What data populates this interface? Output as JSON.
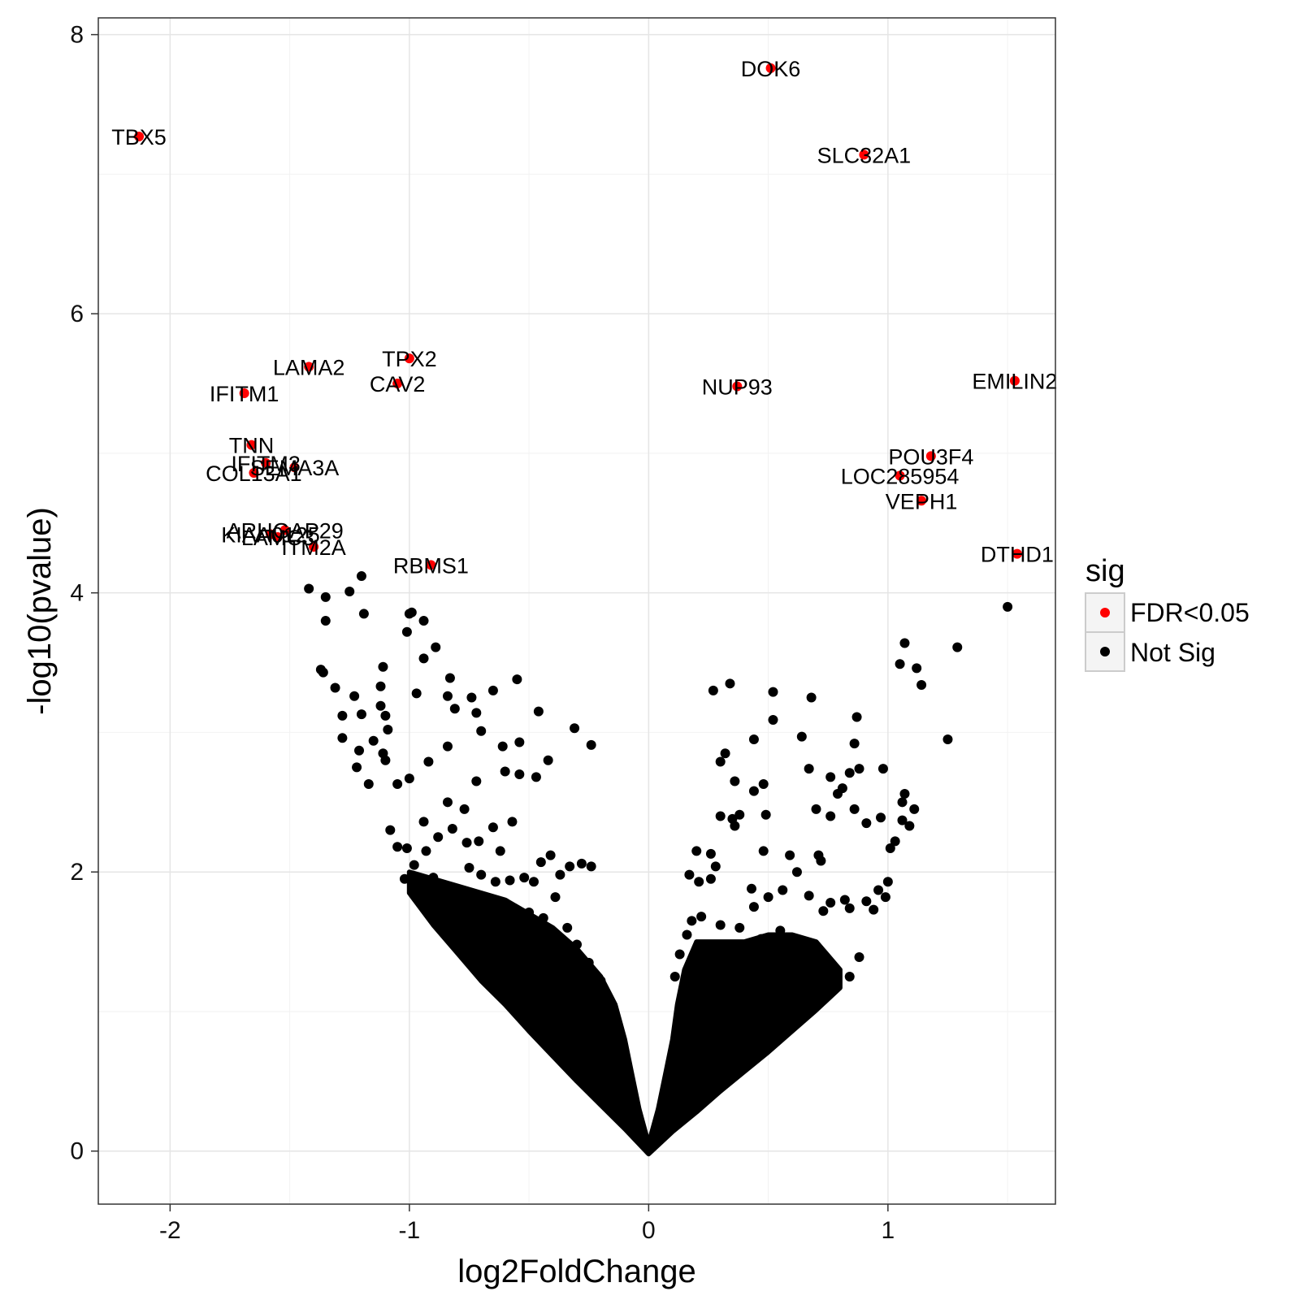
{
  "chart_data": {
    "type": "scatter",
    "title": "",
    "xlabel": "log2FoldChange",
    "ylabel": "-log10(pvalue)",
    "xlim": [
      -2.3,
      1.7
    ],
    "ylim": [
      -0.38,
      8.12
    ],
    "x_ticks": [
      -2,
      -1,
      0,
      1
    ],
    "x_tick_labels": [
      "-2",
      "-1",
      "0",
      "1"
    ],
    "y_ticks": [
      0,
      2,
      4,
      6,
      8
    ],
    "y_tick_labels": [
      "0",
      "2",
      "4",
      "6",
      "8"
    ],
    "grid": true,
    "legend": {
      "title": "sig",
      "position": "right",
      "entries": [
        {
          "label": "FDR<0.05",
          "color": "#ff0000"
        },
        {
          "label": "Not Sig",
          "color": "#000000"
        }
      ]
    },
    "series": [
      {
        "name": "FDR<0.05",
        "color": "#ff0000",
        "points": [
          {
            "x": -2.13,
            "y": 7.27,
            "label": "TBX5"
          },
          {
            "x": 0.51,
            "y": 7.76,
            "label": "DOK6"
          },
          {
            "x": 0.9,
            "y": 7.14,
            "label": "SLC32A1"
          },
          {
            "x": -1.42,
            "y": 5.62,
            "label": "LAMA2"
          },
          {
            "x": -1.0,
            "y": 5.68,
            "label": "TPX2"
          },
          {
            "x": -1.05,
            "y": 5.5,
            "label": "CAV2"
          },
          {
            "x": -1.69,
            "y": 5.43,
            "label": "IFITM1"
          },
          {
            "x": 0.37,
            "y": 5.48,
            "label": "NUP93"
          },
          {
            "x": 1.53,
            "y": 5.52,
            "label": "EMILIN2"
          },
          {
            "x": -1.66,
            "y": 5.06,
            "label": "TNN"
          },
          {
            "x": -1.6,
            "y": 4.93,
            "label": "IFITM3"
          },
          {
            "x": -1.48,
            "y": 4.9,
            "label": "SEMA3A"
          },
          {
            "x": -1.65,
            "y": 4.86,
            "label": "COL13A1"
          },
          {
            "x": 1.18,
            "y": 4.98,
            "label": "POU3F4"
          },
          {
            "x": 1.05,
            "y": 4.84,
            "label": "LOC285954"
          },
          {
            "x": 1.14,
            "y": 4.66,
            "label": "VEPH1"
          },
          {
            "x": -1.52,
            "y": 4.45,
            "label": "ARHGAP29"
          },
          {
            "x": -1.58,
            "y": 4.42,
            "label": "KIAA0125"
          },
          {
            "x": -1.55,
            "y": 4.4,
            "label": "LAMC3"
          },
          {
            "x": -1.4,
            "y": 4.33,
            "label": "ITM2A"
          },
          {
            "x": -0.91,
            "y": 4.2,
            "label": "RBMS1"
          },
          {
            "x": 1.54,
            "y": 4.28,
            "label": "DTHD1"
          }
        ]
      },
      {
        "name": "Not Sig",
        "color": "#000000",
        "points": [
          {
            "x": -1.42,
            "y": 4.03
          },
          {
            "x": -1.35,
            "y": 3.97
          },
          {
            "x": -1.25,
            "y": 4.01
          },
          {
            "x": -1.2,
            "y": 4.12
          },
          {
            "x": -1.19,
            "y": 3.85
          },
          {
            "x": -1.35,
            "y": 3.8
          },
          {
            "x": -0.99,
            "y": 3.86
          },
          {
            "x": -1.0,
            "y": 3.85
          },
          {
            "x": -1.01,
            "y": 3.72
          },
          {
            "x": -0.94,
            "y": 3.8
          },
          {
            "x": -0.89,
            "y": 3.61
          },
          {
            "x": -0.94,
            "y": 3.53
          },
          {
            "x": -1.37,
            "y": 3.45
          },
          {
            "x": -1.36,
            "y": 3.43
          },
          {
            "x": -1.31,
            "y": 3.32
          },
          {
            "x": -1.11,
            "y": 3.47
          },
          {
            "x": -1.23,
            "y": 3.26
          },
          {
            "x": -1.12,
            "y": 3.33
          },
          {
            "x": -1.12,
            "y": 3.19
          },
          {
            "x": -1.2,
            "y": 3.13
          },
          {
            "x": -1.1,
            "y": 3.12
          },
          {
            "x": -1.28,
            "y": 3.12
          },
          {
            "x": -1.09,
            "y": 3.02
          },
          {
            "x": -0.97,
            "y": 3.28
          },
          {
            "x": -0.83,
            "y": 3.39
          },
          {
            "x": -0.84,
            "y": 3.26
          },
          {
            "x": -0.74,
            "y": 3.25
          },
          {
            "x": -0.65,
            "y": 3.3
          },
          {
            "x": -0.55,
            "y": 3.38
          },
          {
            "x": -0.46,
            "y": 3.15
          },
          {
            "x": -0.31,
            "y": 3.03
          },
          {
            "x": -0.24,
            "y": 2.91
          },
          {
            "x": -0.72,
            "y": 3.14
          },
          {
            "x": -0.81,
            "y": 3.17
          },
          {
            "x": -0.7,
            "y": 3.01
          },
          {
            "x": -0.84,
            "y": 2.9
          },
          {
            "x": -0.92,
            "y": 2.79
          },
          {
            "x": -0.61,
            "y": 2.9
          },
          {
            "x": -0.54,
            "y": 2.93
          },
          {
            "x": -0.42,
            "y": 2.8
          },
          {
            "x": -0.6,
            "y": 2.72
          },
          {
            "x": -0.54,
            "y": 2.7
          },
          {
            "x": -0.47,
            "y": 2.68
          },
          {
            "x": -0.72,
            "y": 2.65
          },
          {
            "x": -1.28,
            "y": 2.96
          },
          {
            "x": -1.21,
            "y": 2.87
          },
          {
            "x": -1.22,
            "y": 2.75
          },
          {
            "x": -1.15,
            "y": 2.94
          },
          {
            "x": -1.11,
            "y": 2.85
          },
          {
            "x": -1.1,
            "y": 2.8
          },
          {
            "x": -1.05,
            "y": 2.63
          },
          {
            "x": -1.17,
            "y": 2.63
          },
          {
            "x": -1.0,
            "y": 2.67
          },
          {
            "x": 0.27,
            "y": 3.3
          },
          {
            "x": 0.34,
            "y": 3.35
          },
          {
            "x": 0.52,
            "y": 3.29
          },
          {
            "x": 0.68,
            "y": 3.25
          },
          {
            "x": 0.87,
            "y": 3.11
          },
          {
            "x": 0.52,
            "y": 3.09
          },
          {
            "x": 0.64,
            "y": 2.97
          },
          {
            "x": 0.44,
            "y": 2.95
          },
          {
            "x": 0.86,
            "y": 2.92
          },
          {
            "x": 0.32,
            "y": 2.85
          },
          {
            "x": 0.3,
            "y": 2.79
          },
          {
            "x": 0.67,
            "y": 2.74
          },
          {
            "x": 0.88,
            "y": 2.74
          },
          {
            "x": 0.84,
            "y": 2.71
          },
          {
            "x": 0.98,
            "y": 2.74
          },
          {
            "x": 0.36,
            "y": 2.65
          },
          {
            "x": 0.48,
            "y": 2.63
          },
          {
            "x": 0.44,
            "y": 2.58
          },
          {
            "x": 0.76,
            "y": 2.68
          },
          {
            "x": 0.81,
            "y": 2.6
          },
          {
            "x": 0.79,
            "y": 2.56
          },
          {
            "x": 1.05,
            "y": 3.49
          },
          {
            "x": 1.07,
            "y": 3.64
          },
          {
            "x": 1.12,
            "y": 3.46
          },
          {
            "x": 1.14,
            "y": 3.34
          },
          {
            "x": 1.29,
            "y": 3.61
          },
          {
            "x": 1.5,
            "y": 3.9
          },
          {
            "x": 1.25,
            "y": 2.95
          },
          {
            "x": 1.07,
            "y": 2.56
          },
          {
            "x": 1.06,
            "y": 2.5
          },
          {
            "x": 1.11,
            "y": 2.45
          },
          {
            "x": 1.06,
            "y": 2.37
          },
          {
            "x": 1.09,
            "y": 2.33
          },
          {
            "x": 1.03,
            "y": 2.22
          },
          {
            "x": 1.01,
            "y": 2.17
          },
          {
            "x": 0.7,
            "y": 2.45
          },
          {
            "x": 0.76,
            "y": 2.4
          },
          {
            "x": 0.86,
            "y": 2.45
          },
          {
            "x": 0.91,
            "y": 2.35
          },
          {
            "x": 0.97,
            "y": 2.39
          },
          {
            "x": 0.3,
            "y": 2.4
          },
          {
            "x": 0.35,
            "y": 2.38
          },
          {
            "x": 0.38,
            "y": 2.41
          },
          {
            "x": 0.49,
            "y": 2.41
          },
          {
            "x": 0.36,
            "y": 2.33
          },
          {
            "x": 0.2,
            "y": 2.15
          },
          {
            "x": 0.26,
            "y": 2.13
          },
          {
            "x": 0.48,
            "y": 2.15
          },
          {
            "x": 0.59,
            "y": 2.12
          },
          {
            "x": 0.71,
            "y": 2.12
          },
          {
            "x": 0.62,
            "y": 2.0
          },
          {
            "x": 0.72,
            "y": 2.08
          },
          {
            "x": 0.21,
            "y": 1.93
          },
          {
            "x": 0.17,
            "y": 1.98
          },
          {
            "x": 0.26,
            "y": 1.95
          },
          {
            "x": 0.28,
            "y": 2.04
          },
          {
            "x": 0.43,
            "y": 1.88
          },
          {
            "x": 0.44,
            "y": 1.75
          },
          {
            "x": 0.5,
            "y": 1.82
          },
          {
            "x": 0.56,
            "y": 1.87
          },
          {
            "x": 0.67,
            "y": 1.83
          },
          {
            "x": 0.76,
            "y": 1.78
          },
          {
            "x": 0.73,
            "y": 1.72
          },
          {
            "x": 0.82,
            "y": 1.8
          },
          {
            "x": 0.84,
            "y": 1.74
          },
          {
            "x": 0.91,
            "y": 1.79
          },
          {
            "x": 0.96,
            "y": 1.87
          },
          {
            "x": 0.94,
            "y": 1.73
          },
          {
            "x": 0.99,
            "y": 1.82
          },
          {
            "x": 1.0,
            "y": 1.93
          },
          {
            "x": -0.24,
            "y": 2.04
          },
          {
            "x": -0.28,
            "y": 2.06
          },
          {
            "x": -0.33,
            "y": 2.04
          },
          {
            "x": -0.37,
            "y": 1.98
          },
          {
            "x": -0.45,
            "y": 2.07
          },
          {
            "x": -0.41,
            "y": 2.12
          },
          {
            "x": -0.39,
            "y": 1.82
          },
          {
            "x": -0.48,
            "y": 1.93
          },
          {
            "x": -0.52,
            "y": 1.96
          },
          {
            "x": -0.58,
            "y": 1.94
          },
          {
            "x": -0.64,
            "y": 1.93
          },
          {
            "x": -0.7,
            "y": 1.98
          },
          {
            "x": -0.75,
            "y": 2.03
          },
          {
            "x": -0.76,
            "y": 2.21
          },
          {
            "x": -0.71,
            "y": 2.22
          },
          {
            "x": -0.62,
            "y": 2.15
          },
          {
            "x": -0.57,
            "y": 2.36
          },
          {
            "x": -0.65,
            "y": 2.32
          },
          {
            "x": -0.77,
            "y": 2.45
          },
          {
            "x": -0.84,
            "y": 2.5
          },
          {
            "x": -0.82,
            "y": 2.31
          },
          {
            "x": -0.88,
            "y": 2.25
          },
          {
            "x": -0.94,
            "y": 2.36
          },
          {
            "x": -0.93,
            "y": 2.15
          },
          {
            "x": -1.01,
            "y": 2.17
          },
          {
            "x": -0.98,
            "y": 2.05
          },
          {
            "x": -1.08,
            "y": 2.3
          },
          {
            "x": -1.05,
            "y": 2.18
          },
          {
            "x": -1.02,
            "y": 1.95
          },
          {
            "x": -0.9,
            "y": 1.96
          },
          {
            "x": -0.8,
            "y": 1.83
          },
          {
            "x": -0.72,
            "y": 1.75
          },
          {
            "x": -0.6,
            "y": 1.78
          },
          {
            "x": -0.5,
            "y": 1.71
          },
          {
            "x": -0.44,
            "y": 1.67
          },
          {
            "x": -0.34,
            "y": 1.6
          },
          {
            "x": -0.3,
            "y": 1.48
          },
          {
            "x": -0.25,
            "y": 1.35
          },
          {
            "x": -0.2,
            "y": 1.22
          },
          {
            "x": -0.16,
            "y": 1.06
          },
          {
            "x": -0.12,
            "y": 0.85
          },
          {
            "x": -0.1,
            "y": 0.68
          },
          {
            "x": -0.08,
            "y": 0.52
          },
          {
            "x": 0.11,
            "y": 1.25
          },
          {
            "x": 0.13,
            "y": 1.41
          },
          {
            "x": 0.16,
            "y": 1.55
          },
          {
            "x": 0.18,
            "y": 1.65
          },
          {
            "x": 0.22,
            "y": 1.68
          },
          {
            "x": 0.3,
            "y": 1.62
          },
          {
            "x": 0.38,
            "y": 1.6
          },
          {
            "x": 0.47,
            "y": 1.52
          },
          {
            "x": 0.55,
            "y": 1.58
          },
          {
            "x": 0.62,
            "y": 1.47
          },
          {
            "x": 0.7,
            "y": 1.37
          },
          {
            "x": 0.78,
            "y": 1.3
          },
          {
            "x": 0.84,
            "y": 1.25
          },
          {
            "x": 0.88,
            "y": 1.39
          }
        ]
      }
    ],
    "envelope": {
      "description": "dense not-significant points forming a V-shaped region",
      "color": "#000000",
      "outer": [
        [
          -1.0,
          1.85
        ],
        [
          -0.9,
          1.62
        ],
        [
          -0.8,
          1.42
        ],
        [
          -0.7,
          1.22
        ],
        [
          -0.6,
          1.05
        ],
        [
          -0.5,
          0.86
        ],
        [
          -0.4,
          0.68
        ],
        [
          -0.3,
          0.5
        ],
        [
          -0.2,
          0.33
        ],
        [
          -0.1,
          0.16
        ],
        [
          0.0,
          -0.02
        ],
        [
          0.1,
          0.14
        ],
        [
          0.2,
          0.28
        ],
        [
          0.3,
          0.43
        ],
        [
          0.4,
          0.57
        ],
        [
          0.5,
          0.71
        ],
        [
          0.6,
          0.86
        ],
        [
          0.7,
          1.01
        ],
        [
          0.8,
          1.17
        ]
      ],
      "inner": [
        [
          0.8,
          1.3
        ],
        [
          0.7,
          1.5
        ],
        [
          0.6,
          1.55
        ],
        [
          0.5,
          1.55
        ],
        [
          0.4,
          1.5
        ],
        [
          0.3,
          1.5
        ],
        [
          0.2,
          1.5
        ],
        [
          0.15,
          1.3
        ],
        [
          0.12,
          1.05
        ],
        [
          0.1,
          0.8
        ],
        [
          0.07,
          0.55
        ],
        [
          0.04,
          0.3
        ],
        [
          0.0,
          0.05
        ],
        [
          -0.04,
          0.3
        ],
        [
          -0.07,
          0.55
        ],
        [
          -0.1,
          0.8
        ],
        [
          -0.14,
          1.05
        ],
        [
          -0.2,
          1.25
        ],
        [
          -0.3,
          1.45
        ],
        [
          -0.4,
          1.6
        ],
        [
          -0.5,
          1.7
        ],
        [
          -0.6,
          1.8
        ],
        [
          -0.7,
          1.85
        ],
        [
          -0.8,
          1.9
        ],
        [
          -0.9,
          1.95
        ],
        [
          -1.0,
          2.0
        ]
      ]
    }
  }
}
